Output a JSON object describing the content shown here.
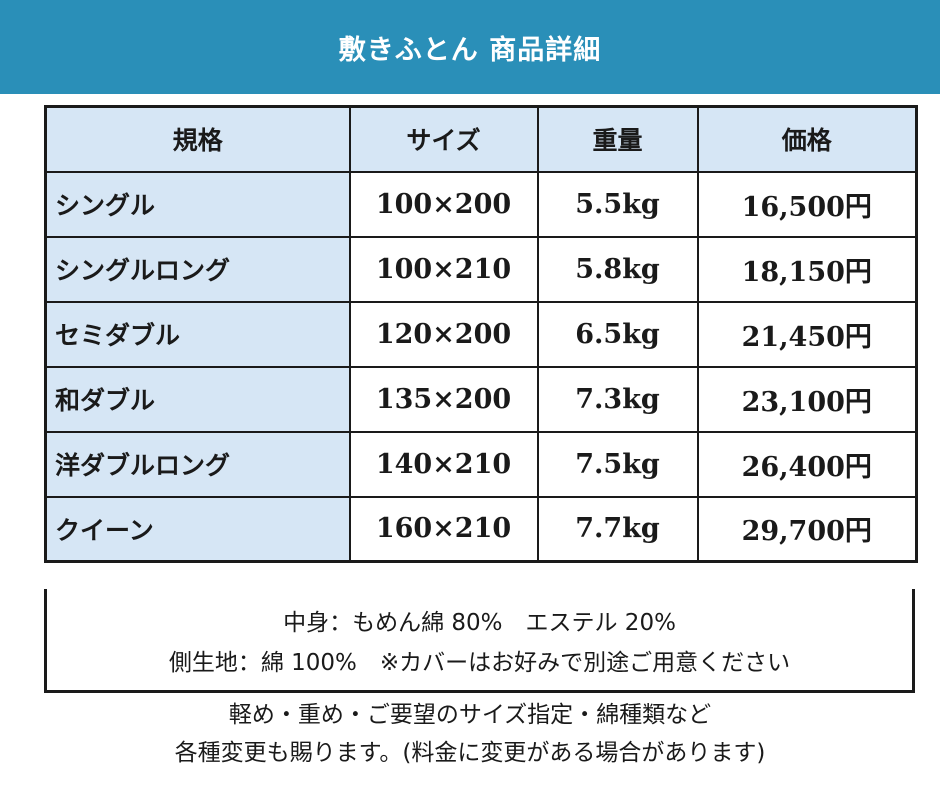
{
  "header": {
    "title": "敷きふとん 商品詳細"
  },
  "table": {
    "columns": [
      "規格",
      "サイズ",
      "重量",
      "価格"
    ],
    "rows": [
      {
        "name": "シングル",
        "size": "100×200",
        "weight": "5.5kg",
        "price": "16,500円"
      },
      {
        "name": "シングルロング",
        "size": "100×210",
        "weight": "5.8kg",
        "price": "18,150円"
      },
      {
        "name": "セミダブル",
        "size": "120×200",
        "weight": "6.5kg",
        "price": "21,450円"
      },
      {
        "name": "和ダブル",
        "size": "135×200",
        "weight": "7.3kg",
        "price": "23,100円"
      },
      {
        "name": "洋ダブルロング",
        "size": "140×210",
        "weight": "7.5kg",
        "price": "26,400円"
      },
      {
        "name": "クイーン",
        "size": "160×210",
        "weight": "7.7kg",
        "price": "29,700円"
      }
    ]
  },
  "notes": {
    "line1": "中身：もめん綿 80%　エステル 20%",
    "line2": "側生地：綿 100%　※カバーはお好みで別途ご用意ください"
  },
  "footer": {
    "line1": "軽め・重め・ご要望のサイズ指定・綿種類など",
    "line2": "各種変更も賜ります。(料金に変更がある場合があります)"
  },
  "colors": {
    "header_bg": "#2a8fb8",
    "header_text": "#ffffff",
    "cell_highlight": "#d6e6f5",
    "border": "#1a1a1a"
  }
}
